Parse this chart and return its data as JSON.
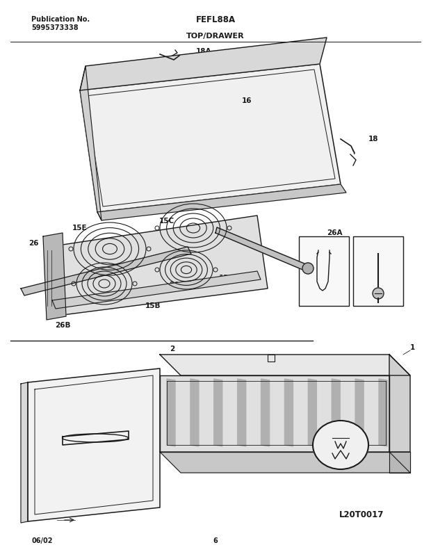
{
  "title": "FEFL88A",
  "subtitle": "TOP/DRAWER",
  "pub_no_label": "Publication No.",
  "pub_no": "5995373338",
  "date": "06/02",
  "page": "6",
  "diagram_id": "L20T0017",
  "bg_color": "#ffffff",
  "line_color": "#1a1a1a",
  "label_color": "#000000"
}
